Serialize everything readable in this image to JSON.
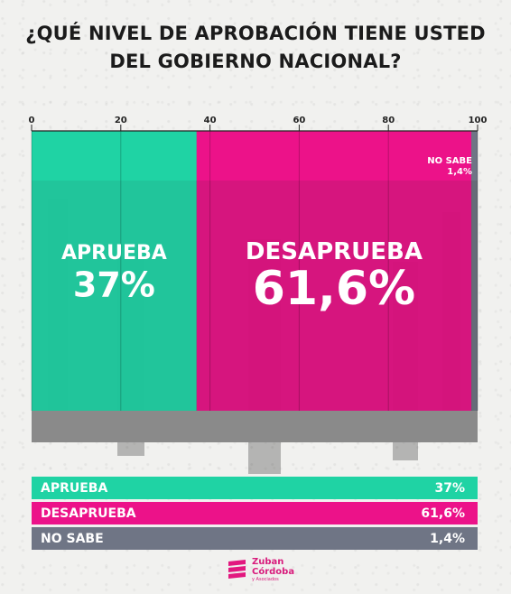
{
  "title": "¿QUÉ NIVEL DE APROBACIÓN TIENE USTED DEL GOBIERNO NACIONAL?",
  "colors": {
    "aprueba": "#1fd3a4",
    "desaprueba": "#ec1289",
    "no_sabe": "#6f7585",
    "photo_base": "#3a2f33"
  },
  "chart_data": {
    "type": "bar",
    "orientation": "horizontal-stacked",
    "xlim": [
      0,
      100
    ],
    "ticks": [
      "0",
      "20",
      "40",
      "60",
      "80",
      "100"
    ],
    "tick_values": [
      0,
      20,
      40,
      60,
      80,
      100
    ],
    "categories": [
      "APRUEBA",
      "DESAPRUEBA",
      "NO SABE"
    ],
    "values": [
      37,
      61.6,
      1.4
    ],
    "bar_labels": [
      "APRUEBA",
      "DESAPRUEBA",
      "NO SABE"
    ],
    "bar_value_labels": [
      "37%",
      "61,6%",
      "1,4%"
    ],
    "grid": true
  },
  "legend": [
    {
      "label": "APRUEBA",
      "value": "37%"
    },
    {
      "label": "DESAPRUEBA",
      "value": "61,6%"
    },
    {
      "label": "NO SABE",
      "value": "1,4%"
    }
  ],
  "logo": {
    "line1": "Zuban",
    "line2": "Córdoba",
    "line3": "y Asociados"
  }
}
